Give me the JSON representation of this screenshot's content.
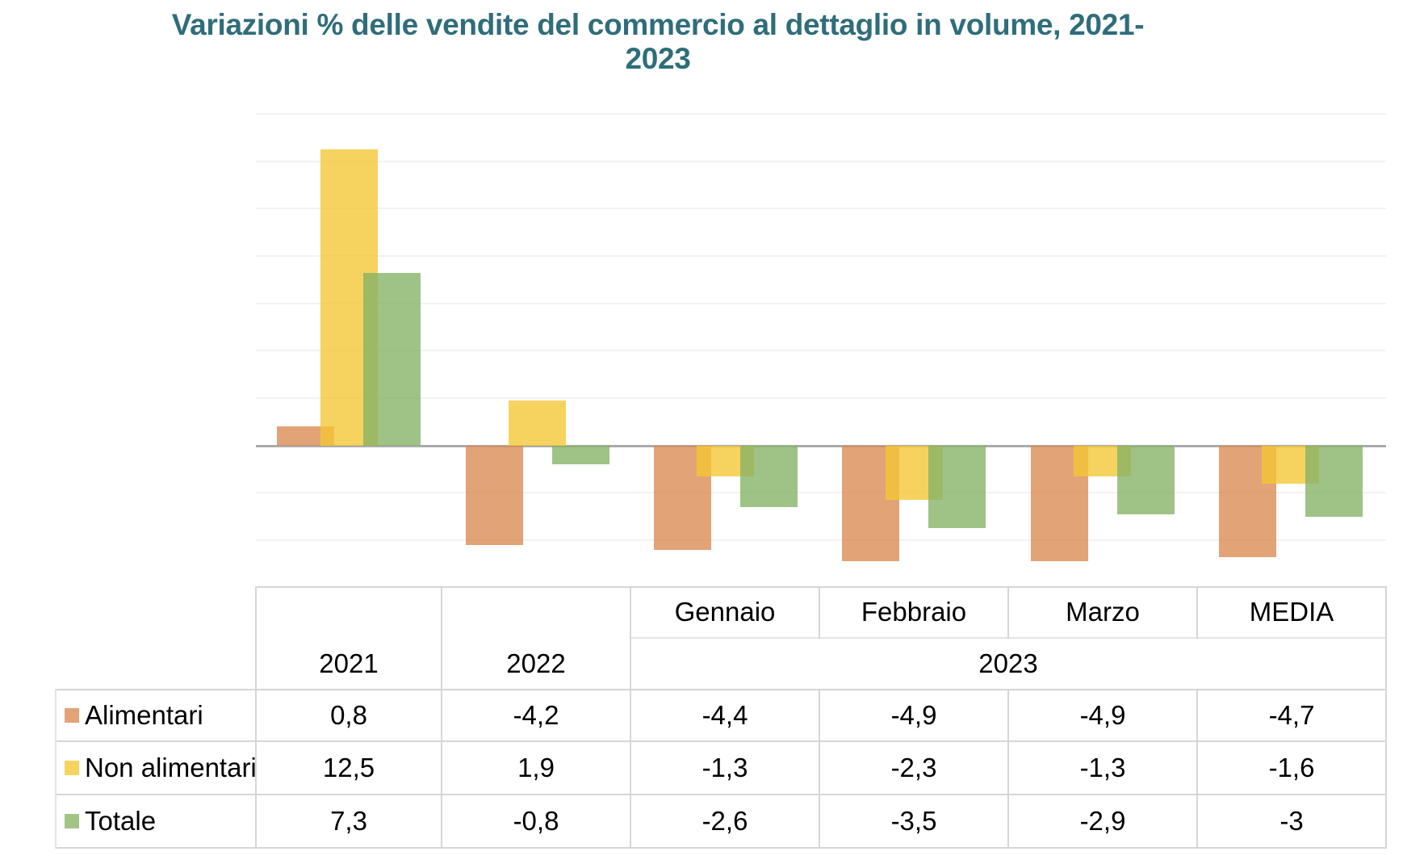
{
  "title": "Variazioni % delle vendite del commercio al dettaglio in volume, 2021-2023",
  "colors": {
    "title_text": "#2F6D7A",
    "bars": [
      "rgb(218,137,81)",
      "rgb(243,199,50)",
      "rgb(132,178,101)"
    ],
    "legend": [
      "#E2A377",
      "#F6D45F",
      "#A2C586"
    ],
    "gridline": "#F2F2F2",
    "zero_line": "#ABABAB",
    "table_border": "#D6D6D6",
    "table_border_light": "#E4E4E4"
  },
  "chart_data": {
    "type": "bar",
    "title": "Variazioni % delle vendite del commercio al dettaglio in volume, 2021-2023",
    "categories": [
      "2021",
      "2022",
      "Gennaio",
      "Febbraio",
      "Marzo",
      "MEDIA"
    ],
    "series": [
      {
        "name": "Alimentari",
        "values": [
          0.8,
          -4.2,
          -4.4,
          -4.9,
          -4.9,
          -4.7
        ]
      },
      {
        "name": "Non alimentari",
        "values": [
          12.5,
          1.9,
          -1.3,
          -2.3,
          -1.3,
          -1.6
        ]
      },
      {
        "name": "Totale",
        "values": [
          7.3,
          -0.8,
          -2.6,
          -3.5,
          -2.9,
          -3
        ]
      }
    ],
    "ylim": [
      -5.1,
      14.55
    ],
    "gridline_step": 2,
    "gridline_values": [
      14,
      12,
      10,
      8,
      6,
      4,
      2,
      -2,
      -4
    ],
    "grid": true,
    "y_axis_labels_visible": false,
    "legend_position": "table-rows-left",
    "bars_overlap": true
  },
  "table": {
    "col_headers_top": [
      "Gennaio",
      "Febbraio",
      "Marzo",
      "MEDIA"
    ],
    "col_headers_year": [
      "2021",
      "2022",
      "2023"
    ],
    "rows": [
      {
        "label": "Alimentari",
        "values": [
          "0,8",
          "-4,2",
          "-4,4",
          "-4,9",
          "-4,9",
          "-4,7"
        ]
      },
      {
        "label": "Non alimentari",
        "values": [
          "12,5",
          "1,9",
          "-1,3",
          "-2,3",
          "-1,3",
          "-1,6"
        ]
      },
      {
        "label": "Totale",
        "values": [
          "7,3",
          "-0,8",
          "-2,6",
          "-3,5",
          "-2,9",
          "-3"
        ]
      }
    ]
  }
}
